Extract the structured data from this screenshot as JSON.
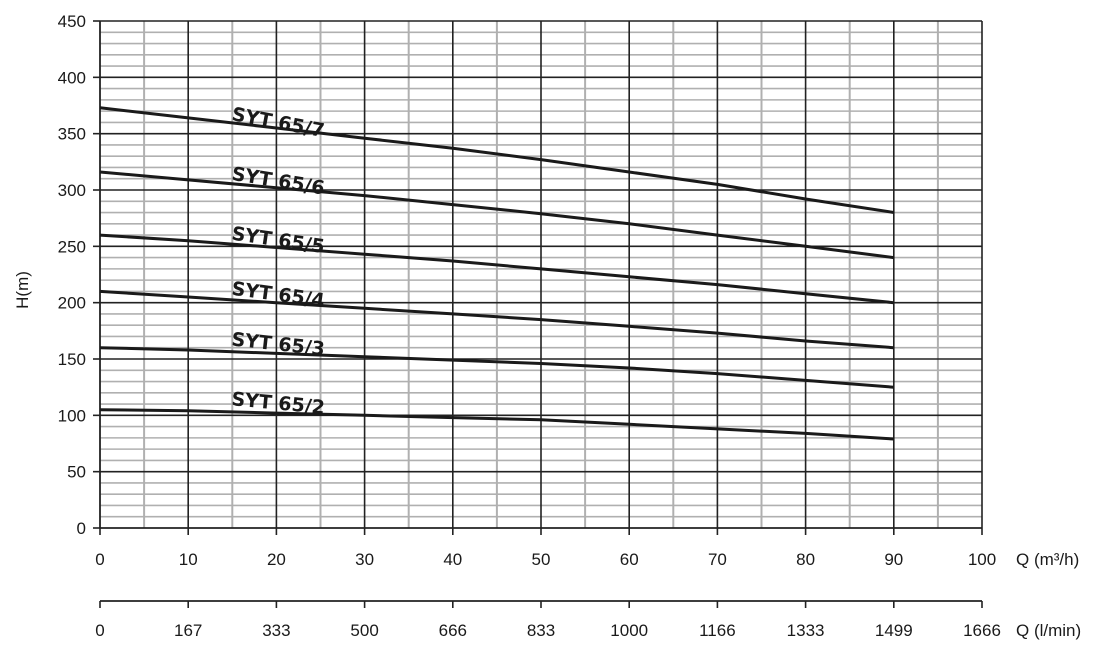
{
  "chart_data": {
    "type": "line",
    "title": "",
    "ylabel": "H(m)",
    "xlabel": "Q (m³/h)",
    "xlabel_secondary": "Q (l/min)",
    "xlim": [
      0,
      100
    ],
    "ylim": [
      0,
      450
    ],
    "x_ticks": [
      "0",
      "10",
      "20",
      "30",
      "40",
      "50",
      "60",
      "70",
      "80",
      "90",
      "100"
    ],
    "x_secondary_ticks": [
      "0",
      "167",
      "333",
      "500",
      "666",
      "833",
      "1000",
      "1166",
      "1333",
      "1499",
      "1666"
    ],
    "y_ticks": [
      "0",
      "50",
      "100",
      "150",
      "200",
      "250",
      "300",
      "350",
      "400",
      "450"
    ],
    "grid": true,
    "series": [
      {
        "name": "SYT 65/7",
        "x": [
          0,
          10,
          20,
          30,
          40,
          50,
          60,
          70,
          80,
          90
        ],
        "y": [
          373,
          364,
          355,
          346,
          337,
          327,
          316,
          305,
          292,
          280
        ]
      },
      {
        "name": "SYT 65/6",
        "x": [
          0,
          10,
          20,
          30,
          40,
          50,
          60,
          70,
          80,
          90
        ],
        "y": [
          316,
          309,
          302,
          295,
          287,
          279,
          270,
          260,
          250,
          240
        ]
      },
      {
        "name": "SYT 65/5",
        "x": [
          0,
          10,
          20,
          30,
          40,
          50,
          60,
          70,
          80,
          90
        ],
        "y": [
          260,
          255,
          249,
          243,
          237,
          230,
          223,
          216,
          208,
          200
        ]
      },
      {
        "name": "SYT 65/4",
        "x": [
          0,
          10,
          20,
          30,
          40,
          50,
          60,
          70,
          80,
          90
        ],
        "y": [
          210,
          205,
          200,
          195,
          190,
          185,
          179,
          173,
          166,
          160
        ]
      },
      {
        "name": "SYT 65/3",
        "x": [
          0,
          10,
          20,
          30,
          40,
          50,
          60,
          70,
          80,
          90
        ],
        "y": [
          160,
          158,
          155,
          152,
          149,
          146,
          142,
          137,
          131,
          125
        ]
      },
      {
        "name": "SYT 65/2",
        "x": [
          0,
          10,
          20,
          30,
          40,
          50,
          60,
          70,
          80,
          90
        ],
        "y": [
          105,
          104,
          102,
          100,
          98,
          96,
          92,
          88,
          84,
          79
        ]
      }
    ]
  }
}
